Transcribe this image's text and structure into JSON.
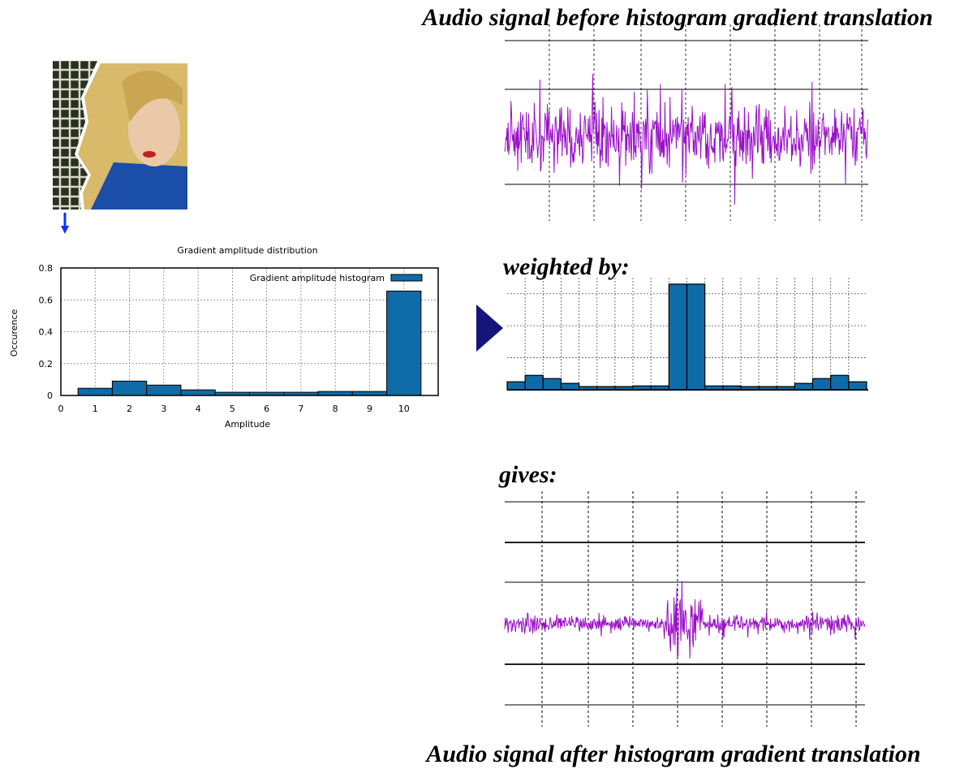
{
  "labels": {
    "top_title": "Audio signal before histogram gradient translation",
    "weighted_by": "weighted by:",
    "gives": "gives:",
    "bottom_title": "Audio signal after histogram gradient translation"
  },
  "chart_data": [
    {
      "type": "bar",
      "title": "Gradient amplitude distribution",
      "x_label": "Amplitude",
      "y_label": "Occurence",
      "x": [
        1,
        2,
        3,
        4,
        5,
        6,
        7,
        8,
        9,
        10
      ],
      "series": [
        {
          "name": "Gradient amplitude histogram",
          "color": "#0e6ba8",
          "values": [
            0.045,
            0.09,
            0.065,
            0.035,
            0.02,
            0.02,
            0.02,
            0.025,
            0.025,
            0.655
          ]
        }
      ],
      "xlim": [
        0,
        11
      ],
      "xticks": [
        0,
        1,
        2,
        3,
        4,
        5,
        6,
        7,
        8,
        9,
        10
      ],
      "ylim": [
        0,
        0.8
      ],
      "yticks": [
        0,
        0.2,
        0.4,
        0.6,
        0.8
      ],
      "grid": true,
      "legend": "upper right"
    },
    {
      "type": "bar",
      "color": "#0e6ba8",
      "values": [
        0.25,
        0.45,
        0.35,
        0.2,
        0.1,
        0.1,
        0.1,
        0.12,
        0.12,
        3.3,
        3.3,
        0.12,
        0.12,
        0.1,
        0.1,
        0.1,
        0.2,
        0.35,
        0.45,
        0.25
      ],
      "ylim": [
        0,
        3.5
      ],
      "ygrid": [
        1,
        2,
        3
      ]
    }
  ]
}
